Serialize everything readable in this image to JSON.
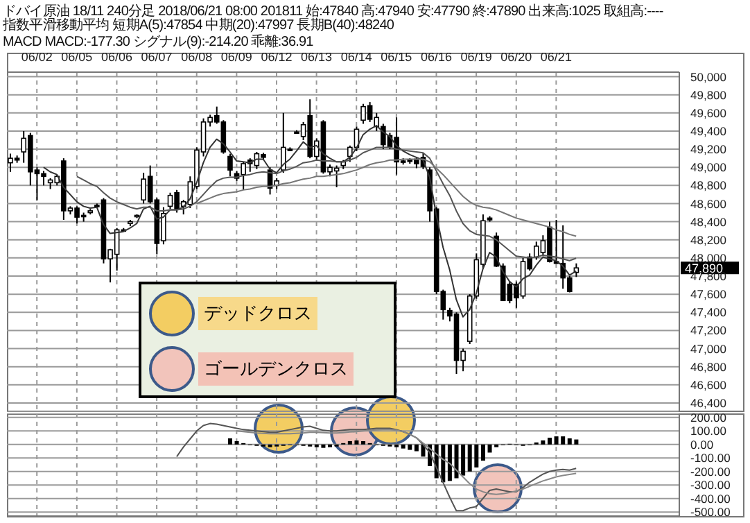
{
  "chart_data": [
    {
      "type": "candlestick",
      "title": "ドバイ原油 18/11 240分足 2018/06/21 08:00 201811 始:47840 高:47940 安:47790 終:47890 出来高:1025 取組高:----",
      "subtitle": "指数平滑移動平均 短期A(5):47854 中期(20):47997 長期B(40):48240\nMACD MACD:-177.30 シグナル(9):-214.20 乖離:36.91",
      "categories": [
        null,
        null,
        null,
        null,
        "06/02",
        null,
        null,
        null,
        null,
        null,
        "06/05",
        null,
        null,
        null,
        null,
        null,
        "06/06",
        null,
        null,
        null,
        null,
        null,
        "06/07",
        null,
        null,
        null,
        null,
        null,
        "06/08",
        null,
        null,
        null,
        null,
        null,
        "06/09",
        null,
        null,
        null,
        null,
        null,
        "06/12",
        null,
        null,
        null,
        null,
        null,
        "06/13",
        null,
        null,
        null,
        null,
        null,
        "06/14",
        null,
        null,
        null,
        null,
        null,
        "06/15",
        null,
        null,
        null,
        null,
        null,
        "06/16",
        null,
        null,
        null,
        null,
        null,
        "06/19",
        null,
        null,
        null,
        null,
        null,
        "06/20",
        null,
        null,
        null,
        null,
        null,
        "06/21",
        null,
        null,
        null
      ],
      "ohlc": [
        [
          49050,
          49150,
          48950,
          49100
        ],
        [
          49100,
          49130,
          49050,
          49080
        ],
        [
          49170,
          49400,
          49050,
          49320
        ],
        [
          49350,
          49380,
          48800,
          48950
        ],
        [
          48970,
          49000,
          48640,
          48930
        ],
        [
          48930,
          48960,
          48800,
          48900
        ],
        [
          48830,
          48880,
          48760,
          48860
        ],
        [
          48830,
          48920,
          48800,
          48900
        ],
        [
          49070,
          49100,
          48420,
          48520
        ],
        [
          48520,
          48570,
          48480,
          48550
        ],
        [
          48550,
          48570,
          48380,
          48450
        ],
        [
          48470,
          48500,
          48400,
          48460
        ],
        [
          48500,
          48540,
          48480,
          48520
        ],
        [
          48580,
          48600,
          48560,
          48570
        ],
        [
          48640,
          48660,
          47940,
          47990
        ],
        [
          47990,
          48100,
          47730,
          48090
        ],
        [
          48040,
          48330,
          47860,
          48310
        ],
        [
          48310,
          48330,
          48290,
          48300
        ],
        [
          48380,
          48420,
          48350,
          48400
        ],
        [
          48460,
          48480,
          48440,
          48470
        ],
        [
          48640,
          48940,
          48600,
          48870
        ],
        [
          48900,
          49020,
          48600,
          48620
        ],
        [
          48640,
          48660,
          48040,
          48160
        ],
        [
          48190,
          48560,
          48150,
          48490
        ],
        [
          48570,
          48720,
          48540,
          48690
        ],
        [
          48720,
          48750,
          48500,
          48540
        ],
        [
          48570,
          48640,
          48480,
          48620
        ],
        [
          48590,
          48900,
          48550,
          48840
        ],
        [
          48790,
          49220,
          48760,
          49190
        ],
        [
          49170,
          49540,
          49120,
          49500
        ],
        [
          49500,
          49580,
          49450,
          49550
        ],
        [
          49570,
          49670,
          49480,
          49500
        ],
        [
          49500,
          49520,
          49150,
          49170
        ],
        [
          49120,
          49150,
          48900,
          48970
        ],
        [
          48930,
          48960,
          48850,
          48880
        ],
        [
          48920,
          49060,
          48750,
          49040
        ],
        [
          49080,
          49100,
          48950,
          49040
        ],
        [
          49020,
          49170,
          48980,
          49150
        ],
        [
          49140,
          49160,
          49080,
          49110
        ],
        [
          48970,
          49000,
          48700,
          48770
        ],
        [
          48800,
          48880,
          48760,
          48850
        ],
        [
          48970,
          49600,
          48940,
          49220
        ],
        [
          49200,
          49220,
          49180,
          49190
        ],
        [
          49390,
          49410,
          49370,
          49380
        ],
        [
          49340,
          49500,
          49300,
          49470
        ],
        [
          49570,
          49750,
          49100,
          49120
        ],
        [
          49120,
          49320,
          49080,
          49290
        ],
        [
          49500,
          49520,
          48930,
          48950
        ],
        [
          48950,
          49030,
          48900,
          49000
        ],
        [
          48960,
          49020,
          48780,
          48990
        ],
        [
          49020,
          49080,
          48980,
          49060
        ],
        [
          49120,
          49240,
          49060,
          49220
        ],
        [
          49220,
          49450,
          49180,
          49420
        ],
        [
          49520,
          49700,
          49480,
          49670
        ],
        [
          49680,
          49720,
          49500,
          49530
        ],
        [
          49450,
          49600,
          49400,
          49550
        ],
        [
          49450,
          49480,
          49200,
          49250
        ],
        [
          49350,
          49380,
          49200,
          49230
        ],
        [
          49330,
          49550,
          48920,
          49060
        ],
        [
          49070,
          49100,
          49030,
          49060
        ],
        [
          49080,
          49100,
          49040,
          49070
        ],
        [
          49090,
          49110,
          48990,
          49040
        ],
        [
          49110,
          49160,
          48980,
          49010
        ],
        [
          48970,
          49000,
          48400,
          48520
        ],
        [
          48540,
          48560,
          47600,
          47630
        ],
        [
          47630,
          47650,
          47320,
          47430
        ],
        [
          47420,
          47450,
          47300,
          47360
        ],
        [
          47380,
          47400,
          46720,
          46870
        ],
        [
          46870,
          47000,
          46750,
          46970
        ],
        [
          47080,
          47600,
          47050,
          47580
        ],
        [
          47580,
          48050,
          47550,
          47980
        ],
        [
          47930,
          48480,
          47880,
          48410
        ],
        [
          48440,
          48460,
          48400,
          48420
        ],
        [
          48240,
          48280,
          47900,
          47910
        ],
        [
          47910,
          47940,
          47530,
          47530
        ],
        [
          47710,
          47740,
          47500,
          47530
        ],
        [
          47710,
          47740,
          47450,
          47560
        ],
        [
          47580,
          48000,
          47550,
          47960
        ],
        [
          48010,
          48050,
          47860,
          47880
        ],
        [
          48010,
          48180,
          47980,
          48130
        ],
        [
          48060,
          48250,
          48030,
          48190
        ],
        [
          48340,
          48400,
          47950,
          47960
        ],
        [
          47960,
          48420,
          47940,
          47940
        ],
        [
          47940,
          48360,
          47660,
          47780
        ],
        [
          47780,
          47800,
          47620,
          47630
        ],
        [
          47840,
          47940,
          47790,
          47890
        ]
      ],
      "color": "#000000",
      "series": [
        {
          "type": "line",
          "color": "#333333",
          "values": [
            null,
            null,
            null,
            null,
            null,
            49000,
            48950,
            48920,
            48780,
            48700,
            48620,
            48570,
            48550,
            48560,
            48370,
            48270,
            48280,
            48290,
            48330,
            48380,
            48540,
            48570,
            48430,
            48450,
            48530,
            48530,
            48560,
            48650,
            48830,
            49050,
            49220,
            49310,
            49260,
            49170,
            49070,
            49060,
            49050,
            49090,
            49090,
            48980,
            48940,
            49030,
            49090,
            49180,
            49280,
            49220,
            49240,
            49150,
            49100,
            49060,
            49060,
            49110,
            49210,
            49360,
            49420,
            49460,
            49390,
            49340,
            49240,
            49180,
            49140,
            49110,
            49080,
            48890,
            48470,
            48120,
            47870,
            47540,
            47350,
            47430,
            47610,
            47880,
            48060,
            48010,
            47850,
            47740,
            47680,
            47770,
            47810,
            47920,
            48010,
            47990,
            47970,
            47910,
            47810,
            47854
          ]
        },
        {
          "type": "line",
          "color": "#555555",
          "values": [
            null,
            null,
            null,
            null,
            null,
            null,
            null,
            null,
            null,
            null,
            48900,
            48860,
            48820,
            48790,
            48720,
            48660,
            48620,
            48590,
            48560,
            48540,
            48560,
            48560,
            48520,
            48520,
            48530,
            48530,
            48540,
            48570,
            48620,
            48700,
            48780,
            48850,
            48880,
            48890,
            48890,
            48910,
            48920,
            48940,
            48950,
            48940,
            48930,
            48960,
            48980,
            49010,
            49050,
            49060,
            49080,
            49070,
            49070,
            49060,
            49060,
            49080,
            49110,
            49160,
            49190,
            49220,
            49220,
            49220,
            49200,
            49190,
            49180,
            49170,
            49160,
            49100,
            48960,
            48820,
            48690,
            48520,
            48380,
            48300,
            48260,
            48250,
            48240,
            48200,
            48140,
            48080,
            48020,
            48010,
            48000,
            48010,
            48030,
            48020,
            48010,
            47990,
            47970,
            47997
          ]
        },
        {
          "type": "line",
          "color": "#777777",
          "values": [
            null,
            null,
            null,
            null,
            null,
            null,
            null,
            null,
            null,
            null,
            null,
            null,
            null,
            null,
            null,
            null,
            null,
            null,
            null,
            null,
            null,
            null,
            null,
            null,
            null,
            null,
            null,
            null,
            48600,
            48630,
            48660,
            48690,
            48710,
            48720,
            48730,
            48750,
            48760,
            48780,
            48790,
            48790,
            48800,
            48820,
            48830,
            48850,
            48870,
            48880,
            48900,
            48900,
            48910,
            48920,
            48930,
            48950,
            48970,
            49000,
            49030,
            49050,
            49060,
            49080,
            49080,
            49090,
            49090,
            49090,
            49090,
            49060,
            48990,
            48920,
            48840,
            48760,
            48680,
            48620,
            48580,
            48560,
            48550,
            48530,
            48500,
            48470,
            48440,
            48420,
            48400,
            48380,
            48360,
            48340,
            48310,
            48290,
            48260,
            48240
          ]
        }
      ],
      "ylim": [
        46300,
        50050
      ],
      "yticks": [
        {
          "value": 46400,
          "label": "46,400"
        },
        {
          "value": 46600,
          "label": "46,600"
        },
        {
          "value": 46800,
          "label": "46,800"
        },
        {
          "value": 47000,
          "label": "47,000"
        },
        {
          "value": 47200,
          "label": "47,200"
        },
        {
          "value": 47400,
          "label": "47,400"
        },
        {
          "value": 47600,
          "label": "47,600"
        },
        {
          "value": 47800,
          "label": "47,800"
        },
        {
          "value": 48000,
          "label": "48,000"
        },
        {
          "value": 48200,
          "label": "48,200"
        },
        {
          "value": 48400,
          "label": "48,400"
        },
        {
          "value": 48600,
          "label": "48,600"
        },
        {
          "value": 48800,
          "label": "48,800"
        },
        {
          "value": 49000,
          "label": "49,000"
        },
        {
          "value": 49200,
          "label": "49,200"
        },
        {
          "value": 49400,
          "label": "49,400"
        },
        {
          "value": 49600,
          "label": "49,600"
        },
        {
          "value": 49800,
          "label": "49,800"
        },
        {
          "value": 50000,
          "label": "50,000"
        }
      ],
      "grid": true,
      "annotations": [
        "デッドクロス",
        "ゴールデンクロス",
        "47,890"
      ]
    },
    {
      "type": "bar",
      "categories": [
        null,
        null,
        null,
        null,
        null,
        null,
        null,
        null,
        null,
        null,
        null,
        null,
        null,
        null,
        null,
        null,
        null,
        null,
        null,
        null,
        null,
        null,
        null,
        null,
        null,
        null,
        null,
        null,
        null,
        null,
        null,
        null,
        null,
        null,
        null,
        null,
        null,
        null,
        null,
        null,
        null,
        null,
        null,
        null,
        null,
        null,
        null,
        null,
        null,
        null,
        null,
        null,
        null,
        null,
        null,
        null,
        null,
        null,
        null,
        null,
        null,
        null,
        null,
        null,
        null,
        null,
        null,
        null,
        null,
        null,
        null,
        null,
        null,
        null,
        null,
        null,
        null,
        null,
        null,
        null,
        null,
        null,
        null,
        null,
        null,
        null
      ],
      "series": [
        {
          "type": "bar",
          "color": "#000000",
          "values": [
            null,
            null,
            null,
            null,
            null,
            null,
            null,
            null,
            null,
            null,
            null,
            null,
            null,
            null,
            null,
            null,
            null,
            null,
            null,
            null,
            null,
            null,
            null,
            null,
            null,
            null,
            null,
            null,
            null,
            null,
            null,
            null,
            null,
            45,
            25,
            10,
            -5,
            -10,
            -15,
            -20,
            -15,
            -10,
            -5,
            -5,
            -10,
            -15,
            -20,
            -25,
            -20,
            -15,
            10,
            25,
            30,
            25,
            10,
            -5,
            -10,
            -15,
            -20,
            -30,
            -40,
            -50,
            -90,
            -160,
            -250,
            -280,
            -270,
            -250,
            -230,
            -200,
            -170,
            -120,
            -60,
            -20,
            -5,
            5,
            -5,
            -10,
            -5,
            15,
            30,
            50,
            60,
            60,
            45,
            37
          ]
        },
        {
          "type": "line",
          "color": "#555555",
          "values": [
            null,
            null,
            null,
            null,
            null,
            null,
            null,
            null,
            null,
            null,
            null,
            null,
            null,
            null,
            null,
            null,
            null,
            null,
            null,
            null,
            null,
            null,
            null,
            null,
            null,
            -90,
            -20,
            40,
            100,
            140,
            155,
            150,
            140,
            130,
            120,
            110,
            105,
            100,
            95,
            90,
            90,
            100,
            110,
            120,
            130,
            135,
            120,
            105,
            100,
            100,
            105,
            110,
            110,
            110,
            115,
            120,
            120,
            120,
            110,
            95,
            75,
            50,
            0,
            -60,
            -170,
            -280,
            -390,
            -490,
            -490,
            -470,
            -460,
            -400,
            -340,
            -330,
            -340,
            -350,
            -350,
            -320,
            -280,
            -250,
            -220,
            -200,
            -190,
            -185,
            -190,
            -177
          ]
        },
        {
          "type": "line",
          "color": "#888888",
          "values": [
            null,
            null,
            null,
            null,
            null,
            null,
            null,
            null,
            null,
            null,
            null,
            null,
            null,
            null,
            null,
            null,
            null,
            null,
            null,
            null,
            null,
            null,
            null,
            null,
            null,
            null,
            null,
            null,
            null,
            null,
            null,
            null,
            null,
            null,
            100,
            95,
            90,
            85,
            82,
            80,
            80,
            80,
            80,
            82,
            85,
            90,
            90,
            88,
            85,
            85,
            88,
            92,
            95,
            100,
            105,
            108,
            110,
            110,
            105,
            95,
            75,
            50,
            10,
            -30,
            -70,
            -110,
            -140,
            -190,
            -240,
            -290,
            -330,
            -350,
            -365,
            -370,
            -365,
            -355,
            -345,
            -330,
            -310,
            -290,
            -270,
            -255,
            -240,
            -230,
            -222,
            -214
          ]
        }
      ],
      "ylim": [
        -530,
        230
      ],
      "yticks": [
        {
          "value": 200,
          "label": "200.00"
        },
        {
          "value": 100,
          "label": "100.00"
        },
        {
          "value": 0,
          "label": "0.00"
        },
        {
          "value": -100,
          "label": "-100.00"
        },
        {
          "value": -200,
          "label": "-200.00"
        },
        {
          "value": -300,
          "label": "-300.00"
        },
        {
          "value": -400,
          "label": "-400.00"
        },
        {
          "value": -500,
          "label": "-500.00"
        }
      ],
      "grid": true,
      "tick_labels": "y"
    }
  ]
}
